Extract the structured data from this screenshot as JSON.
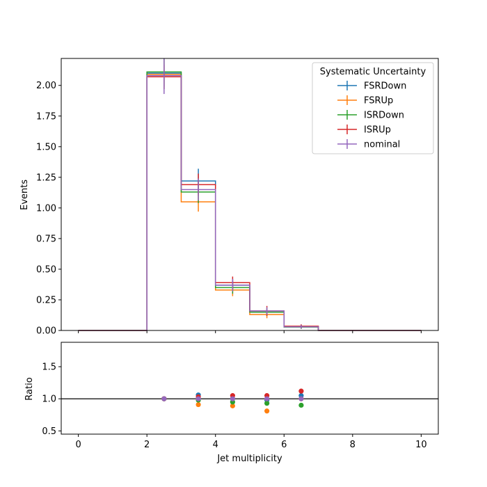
{
  "chart_data": [
    {
      "type": "line",
      "subtype": "step-histogram-with-errorbars",
      "xlabel": "",
      "ylabel": "Events",
      "xlim": [
        -0.5,
        10.5
      ],
      "ylim": [
        0,
        2.22
      ],
      "xticks": [
        0,
        2,
        4,
        6,
        8,
        10
      ],
      "yticks": [
        0.0,
        0.25,
        0.5,
        0.75,
        1.0,
        1.25,
        1.5,
        1.75,
        2.0
      ],
      "ytick_labels": [
        "0.00",
        "0.25",
        "0.50",
        "0.75",
        "1.00",
        "1.25",
        "1.50",
        "1.75",
        "2.00"
      ],
      "grid": false,
      "legend": {
        "title": "Systematic Uncertainty",
        "placement": "top-right"
      },
      "bin_edges": [
        0,
        1,
        2,
        3,
        4,
        5,
        6,
        7,
        8,
        9,
        10
      ],
      "series": [
        {
          "name": "FSRDown",
          "color": "#1f77b4",
          "values": [
            0,
            0,
            2.1,
            1.22,
            0.37,
            0.15,
            0.03,
            0,
            0,
            0
          ],
          "errors": [
            0,
            0,
            0.13,
            0.1,
            0.05,
            0.03,
            0.015,
            0,
            0,
            0
          ]
        },
        {
          "name": "FSRUp",
          "color": "#ff7f0e",
          "values": [
            0,
            0,
            2.09,
            1.05,
            0.33,
            0.13,
            0.03,
            0,
            0,
            0
          ],
          "errors": [
            0,
            0,
            0.12,
            0.08,
            0.05,
            0.03,
            0.015,
            0,
            0,
            0
          ]
        },
        {
          "name": "ISRDown",
          "color": "#2ca02c",
          "values": [
            0,
            0,
            2.11,
            1.13,
            0.35,
            0.15,
            0.028,
            0,
            0,
            0
          ],
          "errors": [
            0,
            0,
            0.12,
            0.09,
            0.05,
            0.03,
            0.015,
            0,
            0,
            0
          ]
        },
        {
          "name": "ISRUp",
          "color": "#d62728",
          "values": [
            0,
            0,
            2.07,
            1.19,
            0.39,
            0.16,
            0.035,
            0,
            0,
            0
          ],
          "errors": [
            0,
            0,
            0.1,
            0.09,
            0.05,
            0.04,
            0.015,
            0,
            0,
            0
          ]
        },
        {
          "name": "nominal",
          "color": "#9467bd",
          "values": [
            0,
            0,
            2.08,
            1.15,
            0.37,
            0.16,
            0.03,
            0,
            0,
            0
          ],
          "errors": [
            0,
            0,
            0.15,
            0.09,
            0.05,
            0.03,
            0.015,
            0,
            0,
            0
          ]
        }
      ]
    },
    {
      "type": "scatter",
      "xlabel": "Jet multiplicity",
      "ylabel": "Ratio",
      "xlim": [
        -0.5,
        10.5
      ],
      "ylim": [
        0.45,
        1.88
      ],
      "xticks": [
        0,
        2,
        4,
        6,
        8,
        10
      ],
      "yticks": [
        0.5,
        1.0,
        1.5
      ],
      "ytick_labels": [
        "0.5",
        "1.0",
        "1.5"
      ],
      "reference_line": 1.0,
      "grid": false,
      "x": [
        2.5,
        3.5,
        4.5,
        5.5,
        6.5
      ],
      "series": [
        {
          "name": "FSRDown",
          "color": "#1f77b4",
          "values": [
            1.0,
            1.06,
            1.0,
            0.98,
            1.05
          ]
        },
        {
          "name": "FSRUp",
          "color": "#ff7f0e",
          "values": [
            1.0,
            0.91,
            0.89,
            0.81,
            1.0
          ]
        },
        {
          "name": "ISRDown",
          "color": "#2ca02c",
          "values": [
            1.0,
            0.98,
            0.95,
            0.93,
            0.9
          ]
        },
        {
          "name": "ISRUp",
          "color": "#d62728",
          "values": [
            1.0,
            1.03,
            1.05,
            1.05,
            1.12
          ]
        },
        {
          "name": "nominal",
          "color": "#9467bd",
          "values": [
            1.0,
            1.0,
            1.0,
            1.0,
            1.0
          ]
        }
      ]
    }
  ]
}
